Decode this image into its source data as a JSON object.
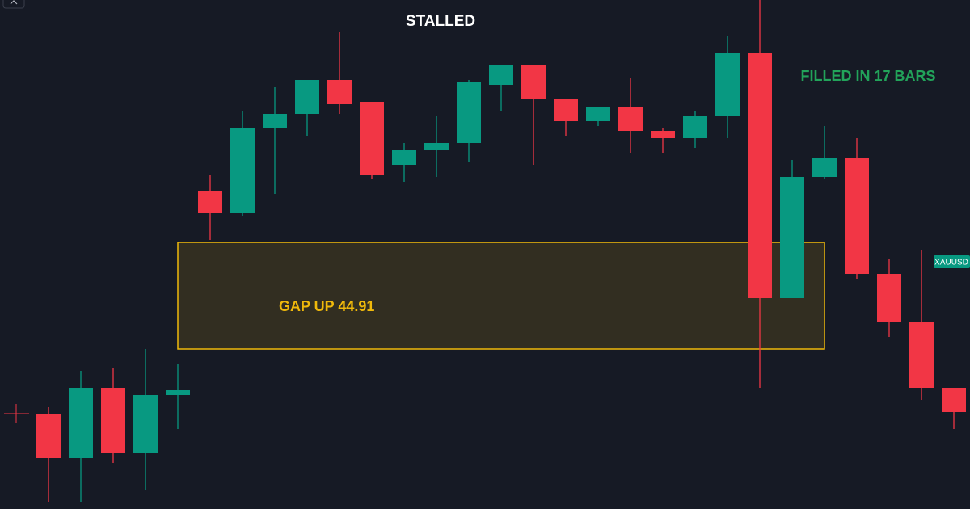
{
  "chart_data": {
    "type": "candlestick",
    "title": "STALLED",
    "annotation": "FILLED IN 17 BARS",
    "symbol": "XAUUSD",
    "up_color": "#089981",
    "down_color": "#f23645",
    "ylim": [
      0,
      210
    ],
    "categories": [
      null,
      null,
      null,
      null,
      null,
      null,
      null,
      null,
      null,
      null,
      null,
      null,
      null,
      null,
      null,
      null,
      null,
      null,
      null,
      null,
      null,
      null,
      null,
      null,
      null,
      null,
      null,
      null,
      null
    ],
    "open": [
      39,
      21,
      50,
      23,
      47,
      131,
      122,
      157,
      163,
      177,
      168,
      142,
      148,
      151,
      175,
      183,
      169,
      160,
      166,
      156,
      153,
      162,
      188,
      87,
      137,
      145,
      97,
      77,
      50
    ],
    "close": [
      21,
      50,
      23,
      47,
      49,
      122,
      157,
      163,
      177,
      167,
      138,
      148,
      151,
      176,
      183,
      169,
      160,
      166,
      156,
      153,
      162,
      188,
      87,
      137,
      145,
      97,
      77,
      50,
      40
    ],
    "high": [
      42,
      57,
      58,
      66,
      60,
      138,
      164,
      174,
      177,
      197,
      168,
      151,
      162,
      177,
      183,
      183,
      169,
      166,
      178,
      157,
      164,
      195,
      210,
      144,
      158,
      153,
      103,
      107,
      50
    ],
    "low": [
      3,
      3,
      19,
      8,
      33,
      111,
      121,
      130,
      154,
      163,
      136,
      135,
      137,
      143,
      164,
      142,
      154,
      158,
      147,
      147,
      149,
      153,
      50,
      87,
      136,
      95,
      71,
      45,
      33
    ],
    "zone": {
      "label": "GAP UP 44.91",
      "low": 66,
      "high": 110,
      "from": 4,
      "to": 23,
      "color": "#f0b90b"
    }
  }
}
